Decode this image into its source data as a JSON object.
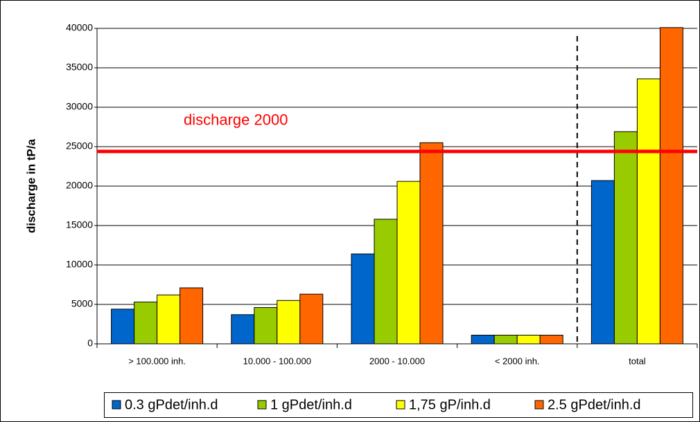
{
  "chart_data": {
    "type": "bar",
    "categories": [
      "> 100.000 inh.",
      "10.000 - 100.000",
      "2000 - 10.000",
      "< 2000 inh.",
      "total"
    ],
    "series": [
      {
        "name": "0.3 gPdet/inh.d",
        "color": "#0066cc",
        "values": [
          4400,
          3700,
          11400,
          1100,
          20700
        ]
      },
      {
        "name": "1 gPdet/inh.d",
        "color": "#99cc00",
        "values": [
          5300,
          4600,
          15800,
          1100,
          26900
        ]
      },
      {
        "name": "1,75 gP/inh.d",
        "color": "#ffff00",
        "values": [
          6200,
          5500,
          20600,
          1100,
          33600
        ]
      },
      {
        "name": "2.5 gPdet/inh.d",
        "color": "#ff6600",
        "values": [
          7100,
          6300,
          25500,
          1100,
          40100
        ]
      }
    ],
    "y_label": "discharge in tP/a",
    "ylim": [
      0,
      40000
    ],
    "yticks": [
      0,
      5000,
      10000,
      15000,
      20000,
      25000,
      30000,
      35000,
      40000
    ],
    "grid": true,
    "reference_line": {
      "value": 24400,
      "label": "discharge 2000",
      "color": "#ff0000"
    },
    "legend": "bottom"
  }
}
